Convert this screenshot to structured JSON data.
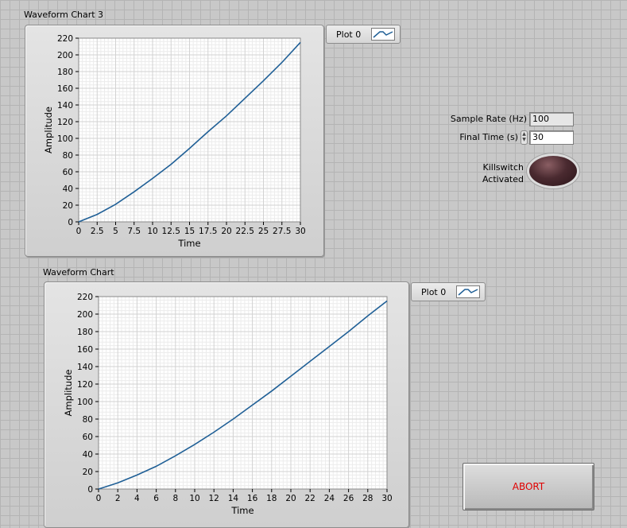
{
  "chart_data": [
    {
      "type": "line",
      "title": "Waveform Chart 3",
      "xlabel": "Time",
      "ylabel": "Amplitude",
      "xlim": [
        0,
        30
      ],
      "ylim": [
        0,
        220
      ],
      "x_ticks": [
        "0",
        "2.5",
        "5",
        "7.5",
        "10",
        "12.5",
        "15",
        "17.5",
        "20",
        "22.5",
        "25",
        "27.5",
        "30"
      ],
      "y_ticks": [
        "0",
        "20",
        "40",
        "60",
        "80",
        "100",
        "120",
        "140",
        "160",
        "180",
        "200",
        "220"
      ],
      "grid": true,
      "legend": "top-right",
      "series": [
        {
          "name": "Plot 0",
          "color": "#1f5f96",
          "x": [
            0,
            2.5,
            5,
            7.5,
            10,
            12.5,
            15,
            17.5,
            20,
            22.5,
            25,
            27.5,
            30
          ],
          "y": [
            0,
            9,
            21,
            36,
            52,
            69,
            88,
            108,
            127,
            148,
            169,
            191,
            215
          ]
        }
      ]
    },
    {
      "type": "line",
      "title": "Waveform Chart",
      "xlabel": "Time",
      "ylabel": "Amplitude",
      "xlim": [
        0,
        30
      ],
      "ylim": [
        0,
        220
      ],
      "x_ticks": [
        "0",
        "2",
        "4",
        "6",
        "8",
        "10",
        "12",
        "14",
        "16",
        "18",
        "20",
        "22",
        "24",
        "26",
        "28",
        "30"
      ],
      "y_ticks": [
        "0",
        "20",
        "40",
        "60",
        "80",
        "100",
        "120",
        "140",
        "160",
        "180",
        "200",
        "220"
      ],
      "grid": true,
      "legend": "top-right",
      "series": [
        {
          "name": "Plot 0",
          "color": "#1f5f96",
          "x": [
            0,
            2,
            4,
            6,
            8,
            10,
            12,
            14,
            16,
            18,
            20,
            22,
            24,
            26,
            28,
            30
          ],
          "y": [
            0,
            7,
            16,
            26,
            38,
            51,
            65,
            80,
            96,
            112,
            129,
            146,
            163,
            180,
            198,
            215
          ]
        }
      ]
    }
  ],
  "controls": {
    "sample_rate_label": "Sample Rate (Hz)",
    "sample_rate_value": "100",
    "final_time_label": "Final Time (s)",
    "final_time_value": "30",
    "killswitch_label_line1": "Killswitch",
    "killswitch_label_line2": "Activated",
    "abort_label": "ABORT"
  },
  "colors": {
    "background": "#c8c8c8",
    "plot_line": "#1f5f96",
    "abort_text": "#e00000",
    "led_off": "#4a2a30"
  }
}
